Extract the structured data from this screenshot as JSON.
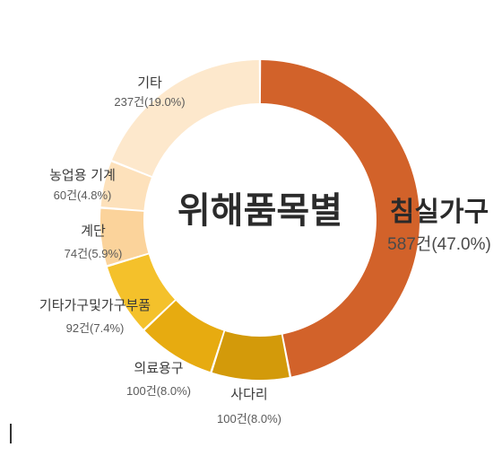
{
  "chart_data": {
    "type": "pie",
    "title": "위해품목별",
    "slices": [
      {
        "name": "침실가구",
        "count": 587,
        "percent": 47.0,
        "value_label": "587건(47.0%)",
        "color": "#d2622a"
      },
      {
        "name": "사다리",
        "count": 100,
        "percent": 8.0,
        "value_label": "100건(8.0%)",
        "color": "#d39a0a"
      },
      {
        "name": "의료용구",
        "count": 100,
        "percent": 8.0,
        "value_label": "100건(8.0%)",
        "color": "#e7ab10"
      },
      {
        "name": "기타가구및가구부품",
        "count": 92,
        "percent": 7.4,
        "value_label": "92건(7.4%)",
        "color": "#f4c12b"
      },
      {
        "name": "계단",
        "count": 74,
        "percent": 5.9,
        "value_label": "74건(5.9%)",
        "color": "#fbd39b"
      },
      {
        "name": "농업용 기계",
        "count": 60,
        "percent": 4.8,
        "value_label": "60건(4.8%)",
        "color": "#fde1bb"
      },
      {
        "name": "기타",
        "count": 237,
        "percent": 19.0,
        "value_label": "237건(19.0%)",
        "color": "#fde8cc"
      }
    ]
  }
}
